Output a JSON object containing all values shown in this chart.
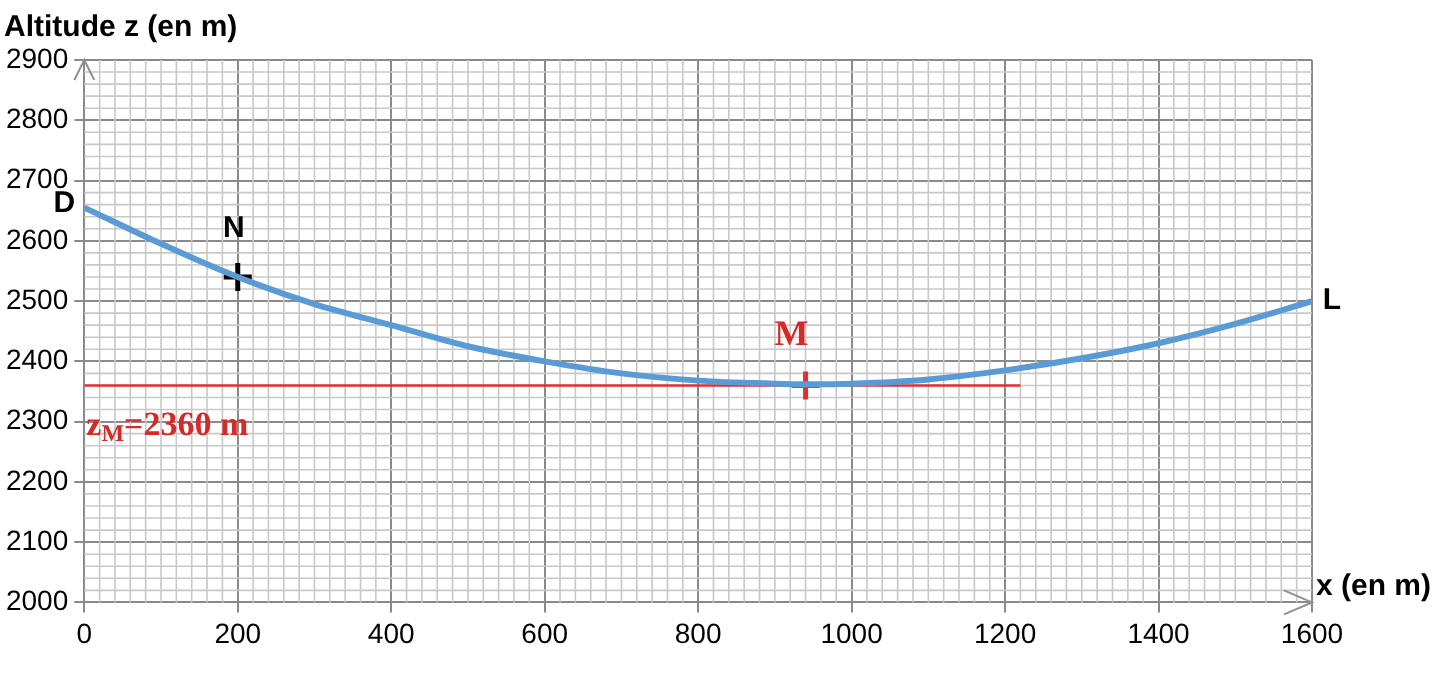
{
  "chart_data": {
    "type": "line",
    "xlabel": "x (en m)",
    "ylabel": "Altitude z (en m)",
    "xlim": [
      0,
      1600
    ],
    "ylim": [
      2000,
      2900
    ],
    "xticks": [
      0,
      200,
      400,
      600,
      800,
      1000,
      1200,
      1400,
      1600
    ],
    "yticks": [
      2000,
      2100,
      2200,
      2300,
      2400,
      2500,
      2600,
      2700,
      2800,
      2900
    ],
    "grid": true,
    "legend": false,
    "series": [
      {
        "type": "line",
        "color": "#5b9bd5",
        "marker": "none",
        "x": [
          0,
          100,
          200,
          300,
          400,
          500,
          600,
          700,
          800,
          900,
          940,
          1000,
          1100,
          1200,
          1300,
          1400,
          1500,
          1600
        ],
        "values": [
          2655,
          2595,
          2540,
          2495,
          2460,
          2425,
          2400,
          2380,
          2368,
          2363,
          2362,
          2363,
          2370,
          2385,
          2405,
          2430,
          2462,
          2500
        ]
      },
      {
        "type": "line",
        "color": "#e03030",
        "marker": "none",
        "x": [
          0,
          1220
        ],
        "values": [
          2360,
          2360
        ]
      },
      {
        "type": "scatter",
        "color": "#000000",
        "marker": "cross",
        "x": [
          200
        ],
        "values": [
          2540
        ]
      },
      {
        "type": "scatter",
        "color": "#e03030",
        "marker": "cross",
        "x": [
          940
        ],
        "values": [
          2360
        ]
      }
    ],
    "annotations": [
      {
        "text": "D",
        "x": 0,
        "y": 2655
      },
      {
        "text": "N",
        "x": 200,
        "y": 2540
      },
      {
        "text": "L",
        "x": 1600,
        "y": 2500
      },
      {
        "text": "M",
        "x": 940,
        "y": 2360
      },
      {
        "text": "z$_{M}$=2360 m",
        "x": 0,
        "y": 2360
      }
    ]
  }
}
